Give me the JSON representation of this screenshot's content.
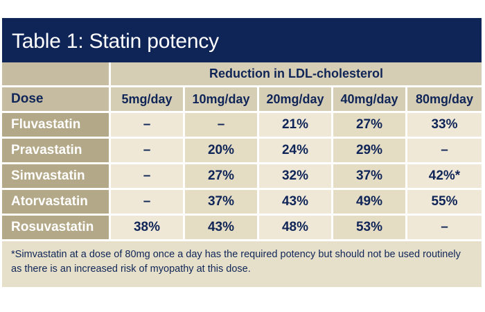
{
  "title": "Table 1: Statin potency",
  "super_header": "Reduction in LDL-cholesterol",
  "dose_label": "Dose",
  "doses": [
    "5mg/day",
    "10mg/day",
    "20mg/day",
    "40mg/day",
    "80mg/day"
  ],
  "rows": [
    {
      "name": "Fluvastatin",
      "values": [
        "–",
        "–",
        "21%",
        "27%",
        "33%"
      ]
    },
    {
      "name": "Pravastatin",
      "values": [
        "–",
        "20%",
        "24%",
        "29%",
        "–"
      ]
    },
    {
      "name": "Simvastatin",
      "values": [
        "–",
        "27%",
        "32%",
        "37%",
        "42%*"
      ]
    },
    {
      "name": "Atorvastatin",
      "values": [
        "–",
        "37%",
        "43%",
        "49%",
        "55%"
      ]
    },
    {
      "name": "Rosuvastatin",
      "values": [
        "38%",
        "43%",
        "48%",
        "53%",
        "–"
      ]
    }
  ],
  "footnote": "*Simvastatin at a dose of 80mg once a day has the required potency but should not be used routinely as there is an increased risk of myopathy at this dose.",
  "colors": {
    "title_bg": "#0f2557",
    "text_navy": "#0f2557",
    "label_bg": "#b3a887",
    "header_bg": "#d6ceb4",
    "cell_bg": "#efe8d7"
  }
}
